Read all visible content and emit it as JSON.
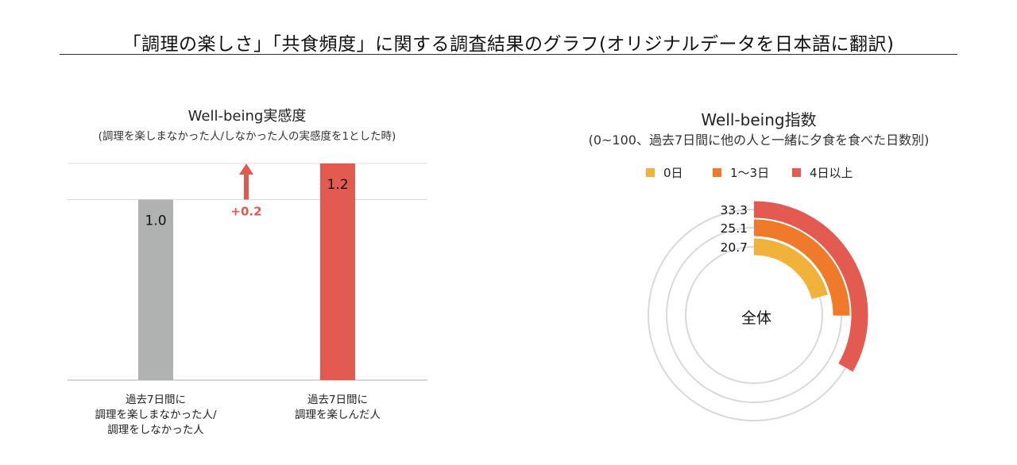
{
  "page": {
    "title": "「調理の楽しさ」「共食頻度」に関する調査結果のグラフ(オリジナルデータを日本語に翻訳)"
  },
  "chart_data": [
    {
      "type": "bar",
      "title": "Well-being実感度",
      "subtitle": "(調理を楽しまなかった人/しなかった人の実感度を1とした時)",
      "categories": [
        [
          "過去7日間に",
          "調理を楽しまなかった人/",
          "調理をしなかった人"
        ],
        [
          "過去7日間に",
          "調理を楽しんだ人"
        ]
      ],
      "values": [
        1.0,
        1.2
      ],
      "value_labels": [
        "1.0",
        "1.2"
      ],
      "colors": [
        "#b0b2b2",
        "#e35b50"
      ],
      "ylim": [
        0,
        1.2
      ],
      "grid": true,
      "annotation": {
        "text": "+0.2",
        "color": "#e05b4f"
      }
    },
    {
      "type": "radial_bar",
      "title": "Well-being指数",
      "subtitle": "(0~100、過去7日間に他の人と一緒に夕食を食べた日数別)",
      "center_label": "全体",
      "scale_max": 100,
      "legend_position": "top",
      "series": [
        {
          "name": "0日",
          "value": 20.7,
          "label": "20.7",
          "color": "#f0b23a"
        },
        {
          "name": "1～3日",
          "value": 25.1,
          "label": "25.1",
          "color": "#ef7a2a"
        },
        {
          "name": "4日以上",
          "value": 33.3,
          "label": "33.3",
          "color": "#e35b50"
        }
      ],
      "track_color": "#d9d9d9"
    }
  ]
}
